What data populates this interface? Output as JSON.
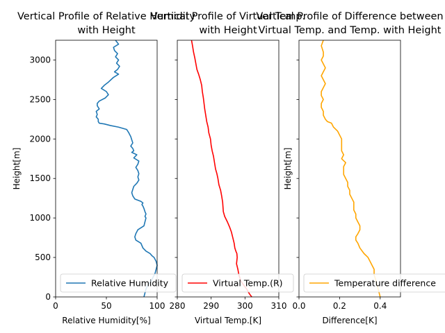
{
  "chart_data": [
    {
      "type": "line",
      "title_lines": [
        "Vertical Profile of Relative Humidity",
        "with Height"
      ],
      "xlabel": "Relative Humidity[%]",
      "ylabel": "Height[m]",
      "xlim": [
        0,
        100
      ],
      "ylim": [
        0,
        3250
      ],
      "xticks": [
        0,
        50,
        100
      ],
      "yticks": [
        0,
        500,
        1000,
        1500,
        2000,
        2500,
        3000
      ],
      "legend_position": "lower-right",
      "series": [
        {
          "name": "Relative Humidity",
          "color": "#1f77b4",
          "x": [
            87,
            88,
            89,
            91,
            94,
            96,
            98,
            99,
            100,
            99,
            97,
            95,
            93,
            89,
            86,
            85,
            84,
            79,
            78,
            79,
            81,
            87,
            88,
            89,
            88,
            89,
            88,
            87,
            86,
            85,
            86,
            84,
            78,
            76,
            75,
            76,
            77,
            80,
            82,
            81,
            82,
            81,
            79,
            81,
            82,
            77,
            80,
            75,
            77,
            76,
            74,
            76,
            75,
            74,
            72,
            70,
            62,
            54,
            48,
            43,
            42,
            42,
            40,
            41,
            40,
            43,
            41,
            41,
            43,
            49,
            52,
            50,
            45,
            48,
            52,
            57,
            62,
            58,
            61,
            63,
            60,
            62,
            59,
            61,
            58,
            57,
            62,
            59
          ],
          "y": [
            0,
            50,
            100,
            150,
            200,
            250,
            300,
            350,
            400,
            450,
            500,
            520,
            550,
            580,
            620,
            650,
            680,
            720,
            760,
            800,
            850,
            900,
            950,
            1000,
            1020,
            1050,
            1080,
            1120,
            1150,
            1170,
            1190,
            1210,
            1240,
            1280,
            1320,
            1360,
            1400,
            1440,
            1480,
            1520,
            1560,
            1600,
            1640,
            1680,
            1720,
            1760,
            1800,
            1830,
            1850,
            1880,
            1910,
            1950,
            1990,
            2030,
            2080,
            2120,
            2150,
            2170,
            2190,
            2200,
            2220,
            2250,
            2280,
            2310,
            2350,
            2380,
            2420,
            2450,
            2480,
            2520,
            2560,
            2600,
            2640,
            2680,
            2720,
            2780,
            2820,
            2850,
            2880,
            2920,
            2960,
            3000,
            3040,
            3080,
            3120,
            3160,
            3200,
            3250
          ]
        }
      ]
    },
    {
      "type": "line",
      "title_lines": [
        "Vertical Profile of Virtual Temp.",
        "with Height"
      ],
      "xlabel": "Virtual Temp.[K]",
      "ylabel": "",
      "xlim": [
        280,
        310
      ],
      "ylim": [
        0,
        3250
      ],
      "xticks": [
        280,
        290,
        300,
        310
      ],
      "yticks": [
        0,
        500,
        1000,
        1500,
        2000,
        2500,
        3000
      ],
      "legend_position": "lower-right",
      "series": [
        {
          "name": "Virtual Temp.(R)",
          "color": "#ff0000",
          "x": [
            302.0,
            301.3,
            300.5,
            299.6,
            298.8,
            298.2,
            297.9,
            297.5,
            297.7,
            297.6,
            297.3,
            297.0,
            296.8,
            296.4,
            296.0,
            295.5,
            294.8,
            294.0,
            293.6,
            293.5,
            293.4,
            293.1,
            292.8,
            292.3,
            292.0,
            291.7,
            291.3,
            291.0,
            290.7,
            290.3,
            290.0,
            289.8,
            289.3,
            289.1,
            288.7,
            288.4,
            288.1,
            287.9,
            287.7,
            287.4,
            287.2,
            286.8,
            286.3,
            285.8,
            285.5,
            285.2,
            284.8,
            284.5,
            284.2
          ],
          "y": [
            0,
            40,
            100,
            150,
            200,
            280,
            350,
            420,
            500,
            550,
            580,
            620,
            680,
            750,
            820,
            880,
            950,
            1020,
            1080,
            1140,
            1200,
            1280,
            1350,
            1420,
            1500,
            1560,
            1620,
            1700,
            1780,
            1850,
            1920,
            2000,
            2080,
            2150,
            2220,
            2300,
            2380,
            2450,
            2520,
            2600,
            2680,
            2750,
            2820,
            2880,
            2950,
            3020,
            3100,
            3180,
            3250
          ]
        }
      ]
    },
    {
      "type": "line",
      "title_lines": [
        "Vertical Profile of Difference between",
        "Virtual Temp. and Temp. with Height"
      ],
      "xlabel": "Difference[K]",
      "ylabel": "Height[m]",
      "xlim": [
        0.0,
        0.5
      ],
      "ylim": [
        0,
        3250
      ],
      "xticks": [
        0.0,
        0.2,
        0.4
      ],
      "xtick_labels": [
        "0.0",
        "0.2",
        "0.4"
      ],
      "yticks": [
        0,
        500,
        1000,
        1500,
        2000,
        2500,
        3000
      ],
      "legend_position": "lower-right",
      "series": [
        {
          "name": "Temperature difference",
          "color": "#ffa500",
          "x": [
            0.4,
            0.39,
            0.38,
            0.37,
            0.37,
            0.36,
            0.35,
            0.34,
            0.32,
            0.3,
            0.29,
            0.28,
            0.28,
            0.29,
            0.3,
            0.3,
            0.29,
            0.28,
            0.28,
            0.27,
            0.27,
            0.27,
            0.26,
            0.25,
            0.25,
            0.24,
            0.24,
            0.23,
            0.22,
            0.22,
            0.22,
            0.23,
            0.21,
            0.22,
            0.21,
            0.21,
            0.21,
            0.21,
            0.2,
            0.19,
            0.17,
            0.16,
            0.14,
            0.13,
            0.12,
            0.12,
            0.11,
            0.11,
            0.12,
            0.11,
            0.11,
            0.12,
            0.13,
            0.12,
            0.11,
            0.12,
            0.13,
            0.12,
            0.11,
            0.12,
            0.12,
            0.11,
            0.12
          ],
          "y": [
            0,
            100,
            200,
            280,
            350,
            400,
            450,
            500,
            550,
            620,
            680,
            720,
            760,
            800,
            850,
            900,
            950,
            1000,
            1050,
            1100,
            1150,
            1200,
            1250,
            1300,
            1350,
            1400,
            1450,
            1500,
            1550,
            1600,
            1650,
            1700,
            1750,
            1800,
            1850,
            1900,
            1950,
            2000,
            2050,
            2100,
            2150,
            2200,
            2220,
            2250,
            2300,
            2350,
            2400,
            2450,
            2500,
            2550,
            2600,
            2650,
            2700,
            2750,
            2800,
            2850,
            2900,
            2950,
            3000,
            3050,
            3100,
            3180,
            3250
          ]
        }
      ]
    }
  ]
}
